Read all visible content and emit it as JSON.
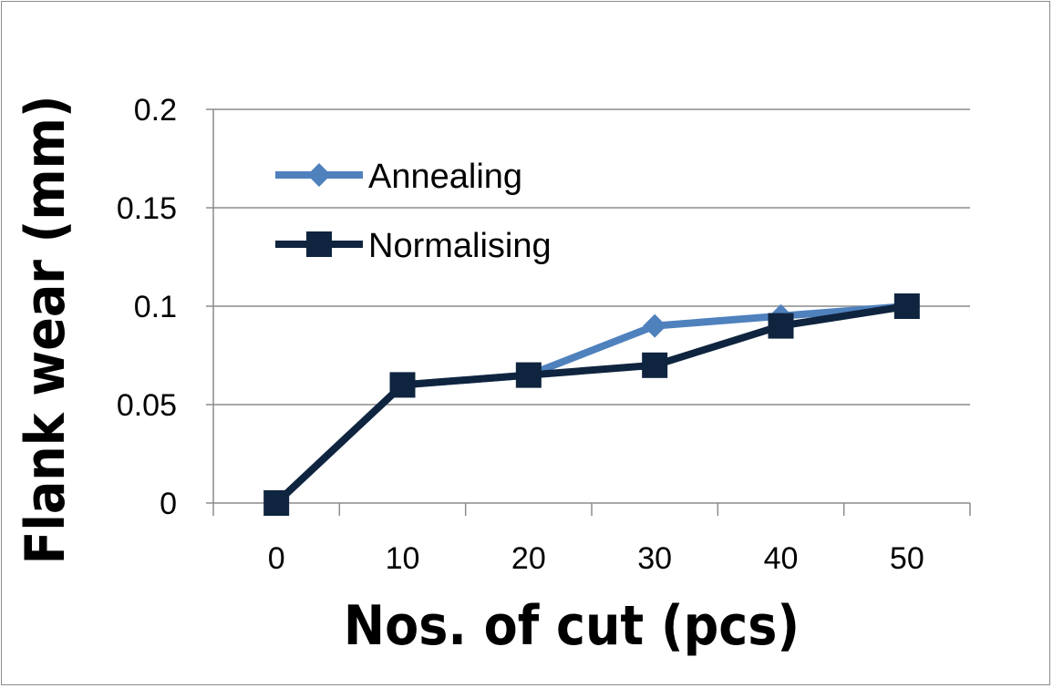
{
  "chart_data": {
    "type": "line",
    "title": "",
    "xlabel": "Nos. of cut (pcs)",
    "ylabel": "Flank wear (mm)",
    "x": [
      0,
      10,
      20,
      30,
      40,
      50
    ],
    "x_tick_labels": [
      "0",
      "10",
      "20",
      "30",
      "40",
      "50"
    ],
    "y_ticks": [
      0,
      0.05,
      0.1,
      0.15,
      0.2
    ],
    "y_tick_labels": [
      "0",
      "0.05",
      "0.1",
      "0.15",
      "0.2"
    ],
    "ylim": [
      0,
      0.2
    ],
    "grid": "horizontal",
    "legend_position": "top-left",
    "series": [
      {
        "name": "Annealing",
        "values": [
          0,
          0.06,
          0.065,
          0.09,
          0.095,
          0.1
        ],
        "color": "#4f81bd",
        "marker": "diamond"
      },
      {
        "name": "Normalising",
        "values": [
          0,
          0.06,
          0.065,
          0.07,
          0.09,
          0.1
        ],
        "color": "#0f243e",
        "marker": "square"
      }
    ]
  }
}
